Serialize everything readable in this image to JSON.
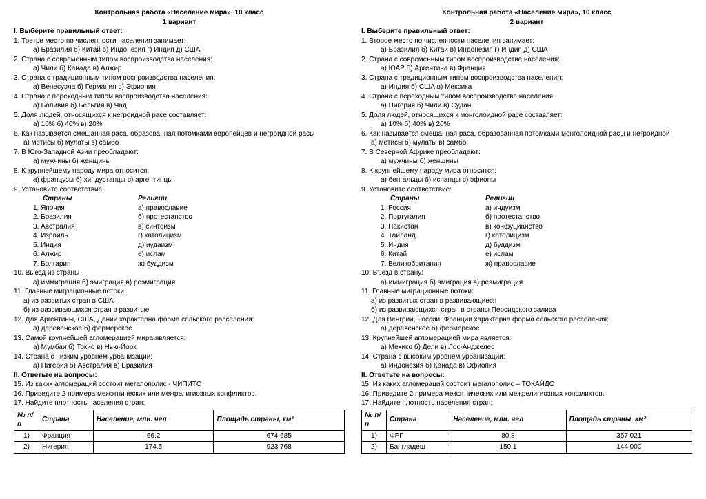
{
  "variants": [
    {
      "title": "Контрольная работа «Население мира», 10 класс",
      "subtitle": "1 вариант",
      "section1": "I. Выберите правильный ответ:",
      "q1": "1. Третье место по численности населения занимает:",
      "q1opts": "а) Бразилия   б) Китай  в)   Индонезия  г) Индия   д) США",
      "q2": "2. Страна с современным типом воспроизводства населения:",
      "q2opts": "а) Чили        б) Канада       в) Алжир",
      "q3": "3. Страна с традиционным типом воспроизводства населения:",
      "q3opts": "а) Венесуэла    б) Германия   в) Эфиопия",
      "q4": "4. Страна с переходным типом воспроизводства населения:",
      "q4opts": "а) Боливия   б) Бельгия   в) Чад",
      "q5": "5. Доля людей, относящихся к негроидной расе составляет:",
      "q5opts": "а) 10%         б) 40%        в) 20%",
      "q6": "6. Как называется смешанная раса, образованная потомками европейцев и негроидной расы",
      "q6opts": "а) метисы        б) мулаты         в) самбо",
      "q7": "7. В Юго-Западной Азии преобладают:",
      "q7opts": "а) мужчины        б) женщины",
      "q8": "8. К крупнейшему народу мира относится:",
      "q8opts": "а) французы      б) хиндустанцы      в) аргентинцы",
      "q9": "9. Установите соответствие:",
      "match_h1": "Страны",
      "match_h2": "Религии",
      "match": [
        [
          "1. Япония",
          "а) православие"
        ],
        [
          "2. Бразилия",
          "б) протестанство"
        ],
        [
          "3. Австралия",
          "в) синтоизм"
        ],
        [
          "4. Израиль",
          "г) католицизм"
        ],
        [
          "5. Индия",
          "д) иудаизм"
        ],
        [
          "6. Алжир",
          "е) ислам"
        ],
        [
          "7. Болгария",
          "ж) буддизм"
        ]
      ],
      "q10": "10. Выезд из страны",
      "q10opts": "а) иммиграция       б) эмиграция        в) реэмиграция",
      "q11": "11. Главные миграционные потоки:",
      "q11a": "а) из развитых стран в США",
      "q11b": "б) из развивающихся стран в развитые",
      "q12": "12. Для Аргентины, США, Дании характерна форма сельского расселения:",
      "q12opts": "а) деревенское           б) фермерское",
      "q13": "13. Самой крупнейшей агломерацией мира является:",
      "q13opts": "а) Мумбаи        б) Токио       в) Нью-Йорк",
      "q14": "14. Страна с низким уровнем  урбанизации:",
      "q14opts": "а) Нигерия       б) Австралия       в) Бразилия",
      "section2": "II. Ответьте на вопросы:",
      "q15": "15.  Из каких агломераций состоит мегалополис - ЧИПИТС",
      "q16": "16.  Приведите 2 примера межэтнических или межрелигиозных конфликтов.",
      "q17": "17. Найдите плотность населения стран:",
      "th": [
        "№ п/п",
        "Страна",
        "Население, млн. чел",
        "Площадь страны, км²"
      ],
      "rows": [
        [
          "1)",
          "Франция",
          "66,2",
          "674 685"
        ],
        [
          "2)",
          "Нигерия",
          "174,5",
          "923 768"
        ]
      ]
    },
    {
      "title": "Контрольная работа «Население мира», 10 класс",
      "subtitle": "2 вариант",
      "section1": "I. Выберите правильный ответ:",
      "q1": "1. Второе место по численности населения занимает:",
      "q1opts": "а) Бразилия   б) Китай  в)   Индонезия  г) Индия   д) США",
      "q2": "2. Страна с современным типом воспроизводства населения:",
      "q2opts": "а) ЮАР    б) Аргентина    в) Франция",
      "q3": "3. Страна с традиционным типом воспроизводства населения:",
      "q3opts": "а) Индия   б) США    в) Мексика",
      "q4": "4. Страна с переходным типом воспроизводства населения:",
      "q4opts": "а) Нигерия   б) Чили   в) Судан",
      "q5": "5. Доля людей, относящихся к монголоидной расе составляет:",
      "q5opts": "а) 10%         б) 40%        в) 20%",
      "q6": "6. Как называется смешанная раса, образованная потомками монголоидной расы и  негроидной",
      "q6opts": "а) метисы         б) мулаты         в) самбо",
      "q7": "7. В Северной Африке преобладают:",
      "q7opts": "а) мужчины            б) женщины",
      "q8": "8. К крупнейшему народу мира относится:",
      "q8opts": "а) бенгальцы      б) испанцы      в) эфиопы",
      "q9": "9. Установите соответствие:",
      "match_h1": "Страны",
      "match_h2": "Религии",
      "match": [
        [
          "1. Россия",
          "а) индуизм"
        ],
        [
          "2. Португалия",
          "б) протестанство"
        ],
        [
          "3. Пакистан",
          "в) конфуцианство"
        ],
        [
          "4. Таиланд",
          "г) католицизм"
        ],
        [
          "5. Индия",
          "д) буддизм"
        ],
        [
          "6. Китай",
          "е) ислам"
        ],
        [
          "7. Великобритания",
          "ж) православие"
        ]
      ],
      "q10": "10. Въезд в страну:",
      "q10opts": "а) иммиграция       б) эмиграция        в) реэмиграция",
      "q11": "11. Главные миграционные потоки:",
      "q11a": "а) из развитых стран в развивающиеся",
      "q11b": "б) из развивающихся стран в страны Персидского залива",
      "q12": "12. Для Венгрии, России, Франции характерна форма сельского расселения:",
      "q12opts": "а) деревенское         б) фермерское",
      "q13": "13. Крупнейшей агломерацией мира является:",
      "q13opts": "а) Мехико        б) Дели       в) Лос-Анджелес",
      "q14": "14. Страна с высоким уровнем  урбанизации:",
      "q14opts": "а) Индонезия     б) Канада      в) Эфиопия",
      "section2": "II. Ответьте на вопросы:",
      "q15": "15. Из каких агломераций состоит мегалополис – ТОКАЙДО",
      "q16": "16. Приведите 2 примера межэтнических или межрелигиозных конфликтов.",
      "q17": "17. Найдите плотность населения стран:",
      "th": [
        "№ п/п",
        "Страна",
        "Население, млн. чел",
        "Площадь страны, км²"
      ],
      "rows": [
        [
          "1)",
          "ФРГ",
          "80,8",
          "357 021"
        ],
        [
          "2)",
          "Бангладеш",
          "150,1",
          "144 000"
        ]
      ]
    }
  ]
}
